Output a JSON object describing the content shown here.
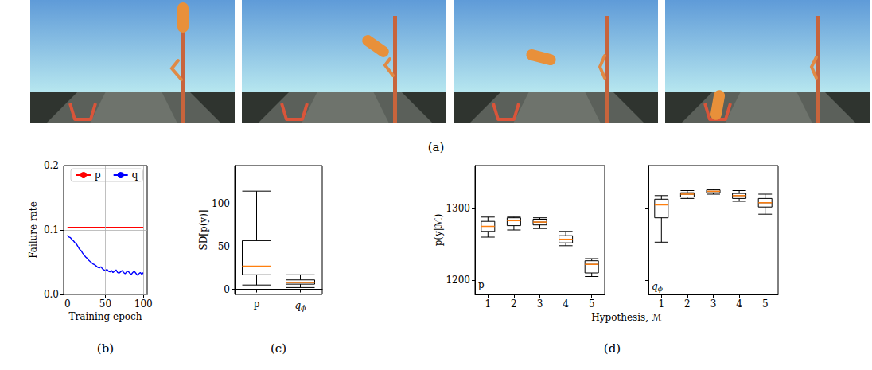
{
  "figure": {
    "panel_a": {
      "label": "(a)",
      "frames": 4
    }
  },
  "chart_data": [
    {
      "panel": "(b)",
      "type": "line",
      "xlabel": "Training epoch",
      "ylabel": "Failure rate",
      "x": [
        0,
        2,
        4,
        6,
        8,
        10,
        12,
        14,
        16,
        18,
        20,
        22,
        24,
        26,
        28,
        30,
        32,
        34,
        36,
        38,
        40,
        42,
        44,
        46,
        48,
        50,
        52,
        54,
        56,
        58,
        60,
        62,
        64,
        66,
        68,
        70,
        72,
        74,
        76,
        78,
        80,
        82,
        84,
        86,
        88,
        90,
        92,
        94,
        96,
        98,
        100
      ],
      "series": [
        {
          "name": "p",
          "color": "#ff0000",
          "values": [
            0.104,
            0.104,
            0.104,
            0.104,
            0.104,
            0.104,
            0.104,
            0.104,
            0.104,
            0.104,
            0.104,
            0.104,
            0.104,
            0.104,
            0.104,
            0.104,
            0.104,
            0.104,
            0.104,
            0.104,
            0.104,
            0.104,
            0.104,
            0.104,
            0.104,
            0.104,
            0.104,
            0.104,
            0.104,
            0.104,
            0.104,
            0.104,
            0.104,
            0.104,
            0.104,
            0.104,
            0.104,
            0.104,
            0.104,
            0.104,
            0.104,
            0.104,
            0.104,
            0.104,
            0.104,
            0.104,
            0.104,
            0.104,
            0.104,
            0.104,
            0.104
          ]
        },
        {
          "name": "q",
          "color": "#0000ff",
          "values": [
            0.092,
            0.089,
            0.088,
            0.085,
            0.083,
            0.08,
            0.078,
            0.074,
            0.07,
            0.068,
            0.064,
            0.061,
            0.058,
            0.056,
            0.053,
            0.051,
            0.049,
            0.047,
            0.046,
            0.044,
            0.042,
            0.041,
            0.043,
            0.04,
            0.038,
            0.037,
            0.039,
            0.036,
            0.035,
            0.037,
            0.034,
            0.036,
            0.038,
            0.034,
            0.033,
            0.035,
            0.037,
            0.034,
            0.032,
            0.035,
            0.036,
            0.033,
            0.031,
            0.034,
            0.036,
            0.033,
            0.03,
            0.032,
            0.034,
            0.031,
            0.034
          ]
        }
      ],
      "xlim": [
        -5,
        105
      ],
      "xticks": [
        0,
        50,
        100
      ],
      "ylim": [
        0,
        0.2
      ],
      "yticks": [
        {
          "value": 0,
          "label": "0.0"
        },
        0.1,
        0.2
      ],
      "grid": true,
      "legend": "top"
    },
    {
      "panel": "(c)",
      "type": "boxplot",
      "ylabel": "SD[p(y)]",
      "categories": [
        "p",
        "qϕ"
      ],
      "boxes": [
        {
          "low": 5,
          "q1": 17,
          "median": 27,
          "q3": 57,
          "high": 115
        },
        {
          "low": 2,
          "q1": 6,
          "median": 8,
          "q3": 11,
          "high": 17
        }
      ],
      "ylim": [
        -6,
        145
      ],
      "yticks": [
        0,
        50,
        100
      ],
      "grid": false
    },
    {
      "panel": "(d)",
      "type": "boxplot",
      "xlabel": "Hypothesis, ℳ",
      "ylabel": "p(y|ℳ)",
      "categories": [
        "1",
        "2",
        "3",
        "4",
        "5"
      ],
      "ylim": [
        1180,
        1360
      ],
      "yticks": [
        1200,
        1300
      ],
      "grid": false,
      "subplots": [
        {
          "annotation": "p",
          "boxes": [
            {
              "low": 1260,
              "q1": 1268,
              "median": 1275,
              "q3": 1282,
              "high": 1288
            },
            {
              "low": 1270,
              "q1": 1276,
              "median": 1283,
              "q3": 1287,
              "high": 1288
            },
            {
              "low": 1272,
              "q1": 1277,
              "median": 1281,
              "q3": 1285,
              "high": 1287
            },
            {
              "low": 1248,
              "q1": 1252,
              "median": 1257,
              "q3": 1262,
              "high": 1268
            },
            {
              "low": 1205,
              "q1": 1210,
              "median": 1222,
              "q3": 1227,
              "high": 1230
            }
          ]
        },
        {
          "annotation": "qϕ",
          "tick_labels": "x",
          "boxes": [
            {
              "low": 1253,
              "q1": 1287,
              "median": 1305,
              "q3": 1313,
              "high": 1318
            },
            {
              "low": 1314,
              "q1": 1316,
              "median": 1320,
              "q3": 1322,
              "high": 1325
            },
            {
              "low": 1320,
              "q1": 1322,
              "median": 1324,
              "q3": 1326,
              "high": 1327
            },
            {
              "low": 1310,
              "q1": 1314,
              "median": 1318,
              "q3": 1321,
              "high": 1325
            },
            {
              "low": 1292,
              "q1": 1302,
              "median": 1308,
              "q3": 1314,
              "high": 1320
            }
          ]
        }
      ]
    }
  ]
}
